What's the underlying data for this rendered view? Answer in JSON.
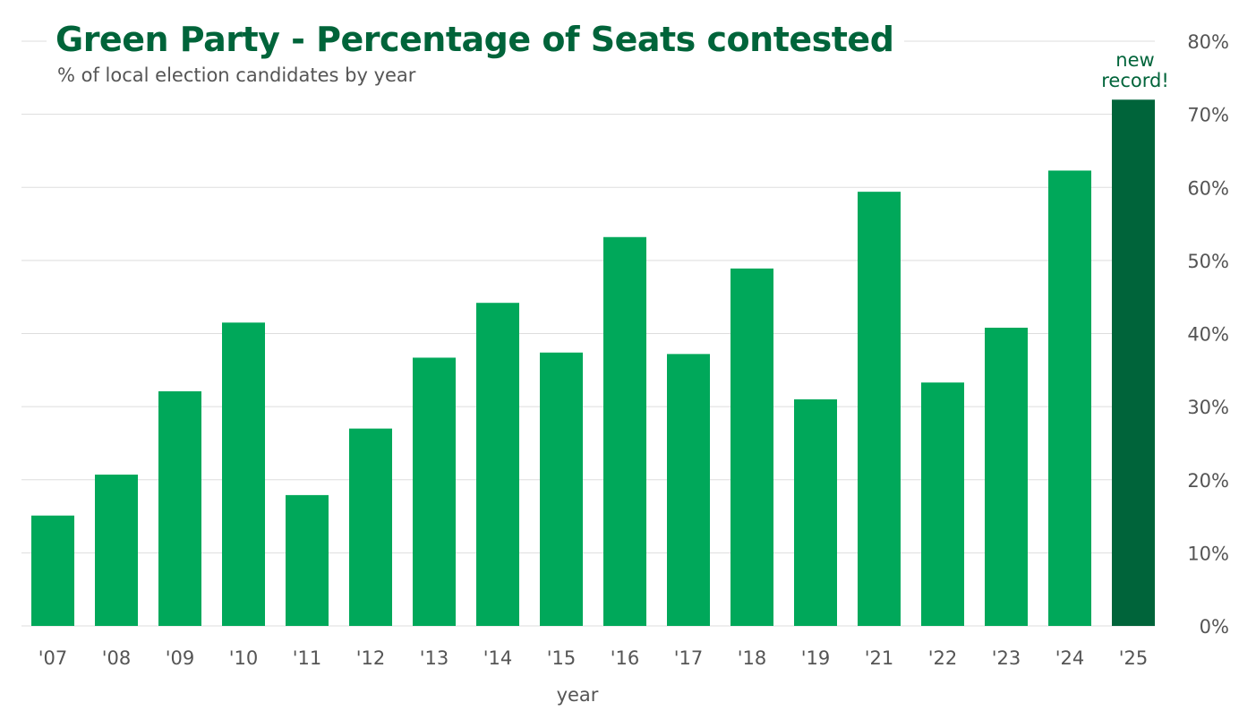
{
  "title": "Green Party - Percentage of Seats contested",
  "subtitle": "% of local election candidates by year",
  "annotation": [
    "new",
    "record!"
  ],
  "colors": {
    "bar": "#00a85a",
    "highlight": "#00643a",
    "grid": "#dddddd",
    "text": "#555555",
    "title": "#00643a"
  },
  "chart_data": {
    "type": "bar",
    "categories": [
      "'07",
      "'08",
      "'09",
      "'10",
      "'11",
      "'12",
      "'13",
      "'14",
      "'15",
      "'16",
      "'17",
      "'18",
      "'19",
      "'21",
      "'22",
      "'23",
      "'24",
      "'25"
    ],
    "values": [
      15.1,
      20.7,
      32.1,
      41.5,
      17.9,
      27.0,
      36.7,
      44.2,
      37.4,
      53.2,
      37.2,
      48.9,
      31.0,
      59.4,
      33.3,
      40.8,
      62.3,
      72.0
    ],
    "highlight_index": 17,
    "xlabel": "year",
    "ylabel": "",
    "ylim": [
      0,
      80
    ],
    "yticks": [
      0,
      10,
      20,
      30,
      40,
      50,
      60,
      70,
      80
    ],
    "ytick_labels": [
      "0%",
      "10%",
      "20%",
      "30%",
      "40%",
      "50%",
      "60%",
      "70%",
      "80%"
    ],
    "y_axis_side": "right",
    "grid": true,
    "legend": "none"
  }
}
